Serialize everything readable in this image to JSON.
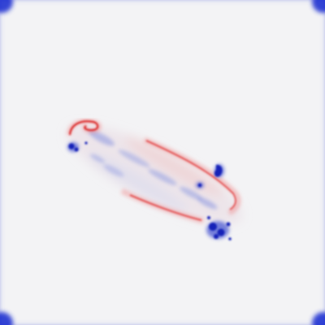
{
  "image": {
    "kind": "diverging-colormap-field",
    "background_color": "#f3f3f5",
    "positive_color": "#e02020",
    "negative_color": "#1020c0",
    "border_color": "#2030d0"
  }
}
